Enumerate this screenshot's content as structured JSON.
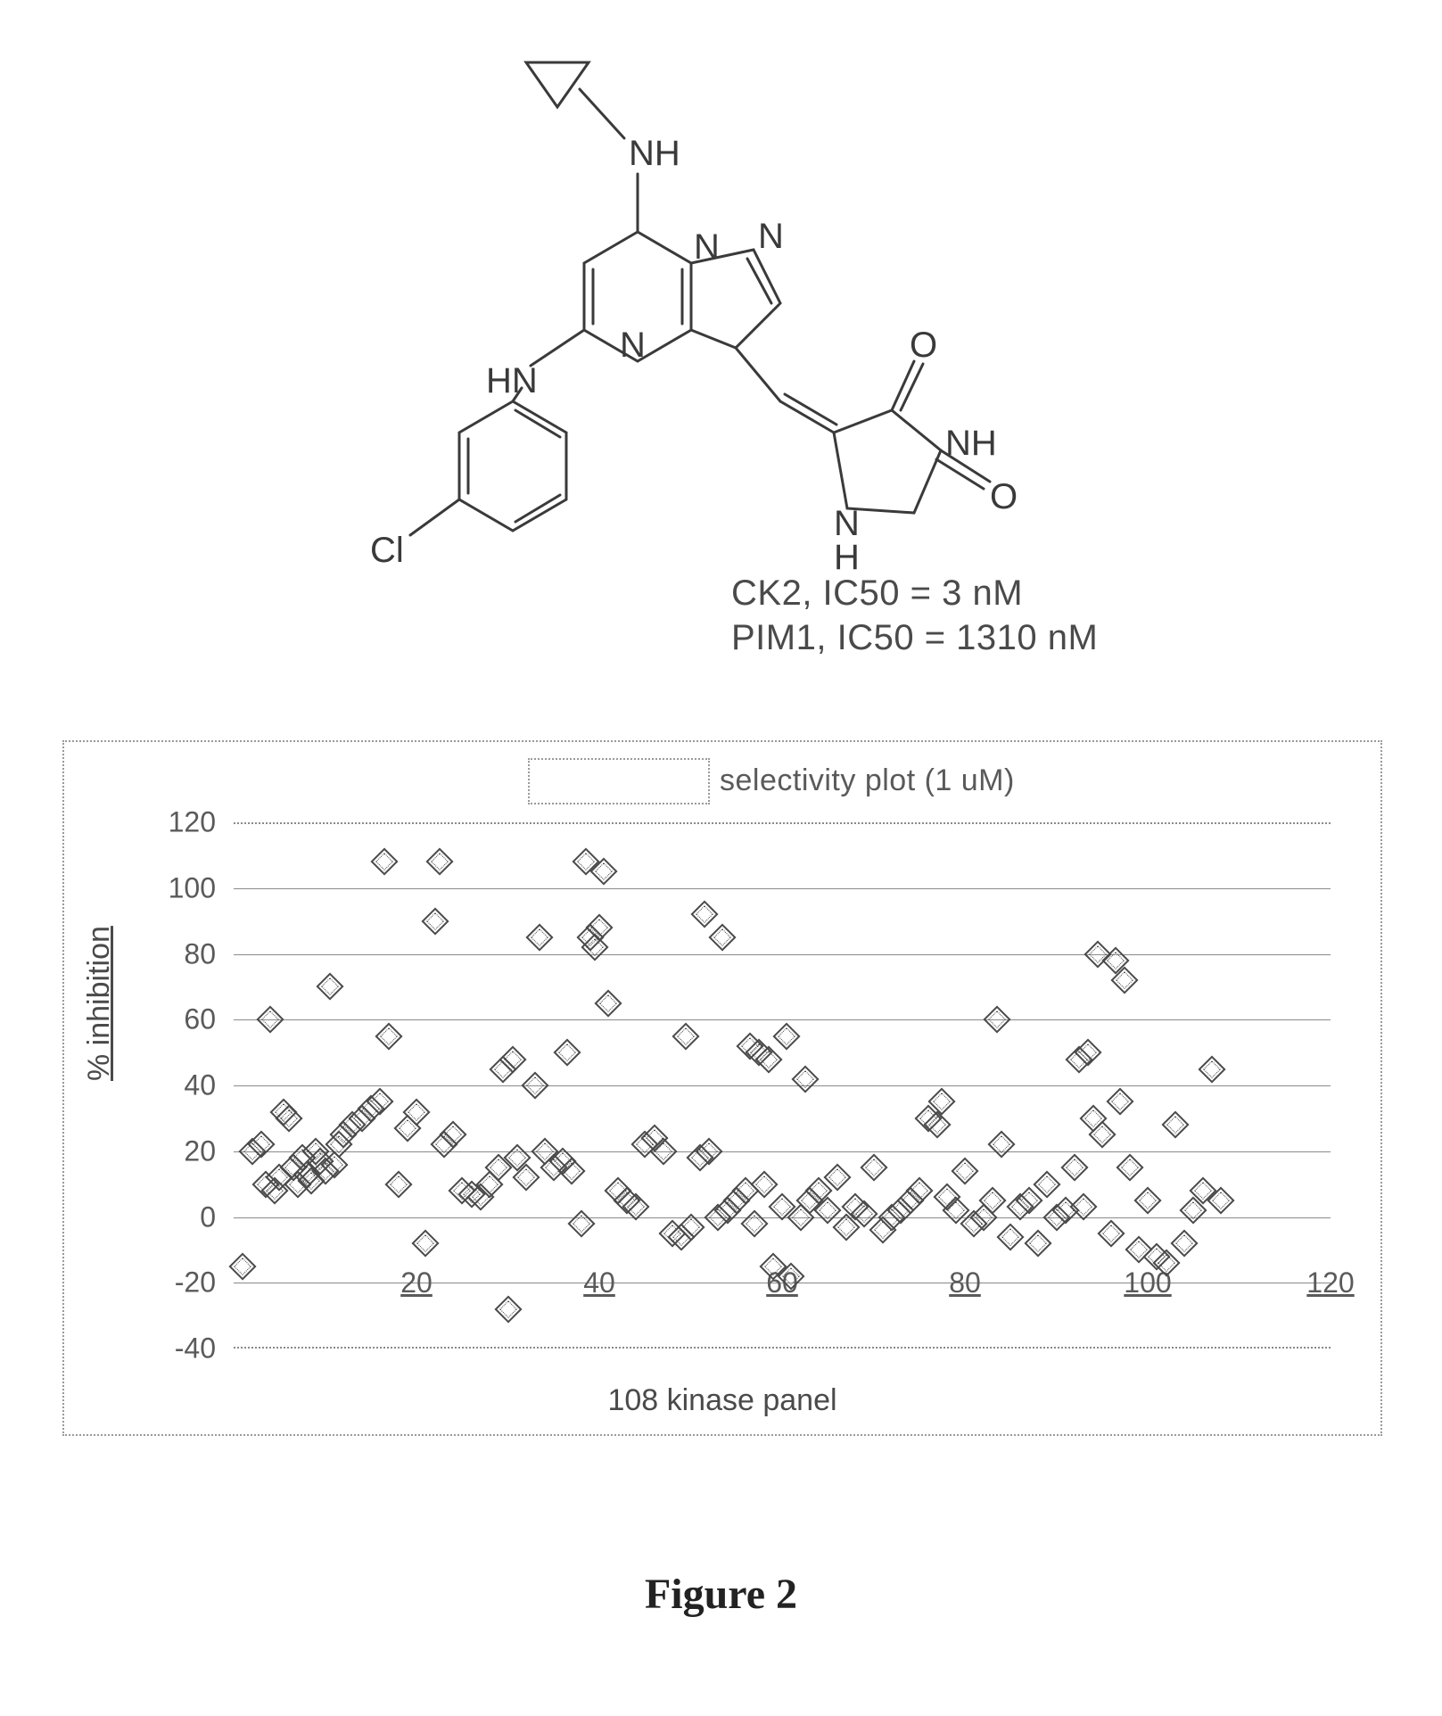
{
  "molecule": {
    "atom_labels": {
      "nh_top": "NH",
      "hn_left": "HN",
      "n_ring_center": "N",
      "n_ring_top": "N",
      "n_ring_right": "N",
      "cl": "Cl",
      "o_top": "O",
      "o_bottom": "O",
      "nh_hyd_right": "NH",
      "nh_hyd_bottom_label_n": "N",
      "nh_hyd_bottom_label_h": "H"
    },
    "line_color": "#3a3a3a",
    "line_width": 3,
    "font_size": 40
  },
  "ic50": {
    "line1": "CK2, IC50 = 3 nM",
    "line2": "PIM1, IC50 = 1310 nM"
  },
  "chart": {
    "type": "scatter",
    "title_box_empty": true,
    "legend_text": "selectivity plot (1 uM)",
    "xlabel": "108 kinase panel",
    "ylabel": "% inhibition",
    "xlim": [
      0,
      120
    ],
    "ylim": [
      -40,
      120
    ],
    "xticks": [
      20,
      40,
      60,
      80,
      100,
      120
    ],
    "yticks": [
      -40,
      -20,
      0,
      20,
      40,
      60,
      80,
      100,
      120
    ],
    "grid_y_values": [
      -20,
      0,
      20,
      40,
      60,
      80,
      100
    ],
    "grid_color": "#8a8a8a",
    "border_style": "dotted",
    "background": "#ffffff",
    "label_fontsize": 34,
    "tick_fontsize": 32,
    "marker_style": "diamond",
    "marker_size": 18,
    "marker_color": "#4a4a4a",
    "points": [
      [
        1,
        -15
      ],
      [
        2,
        20
      ],
      [
        3,
        22
      ],
      [
        3.5,
        10
      ],
      [
        4,
        60
      ],
      [
        4.5,
        8
      ],
      [
        5,
        12
      ],
      [
        5.5,
        32
      ],
      [
        6,
        30
      ],
      [
        6.5,
        15
      ],
      [
        7,
        10
      ],
      [
        7.5,
        18
      ],
      [
        8,
        13
      ],
      [
        8.5,
        11
      ],
      [
        9,
        20
      ],
      [
        9.5,
        17
      ],
      [
        10,
        14
      ],
      [
        10.5,
        70
      ],
      [
        11,
        16
      ],
      [
        11.5,
        22
      ],
      [
        12,
        25
      ],
      [
        13,
        28
      ],
      [
        14,
        30
      ],
      [
        15,
        33
      ],
      [
        16,
        35
      ],
      [
        16.5,
        108
      ],
      [
        17,
        55
      ],
      [
        18,
        10
      ],
      [
        19,
        27
      ],
      [
        20,
        32
      ],
      [
        21,
        -8
      ],
      [
        22,
        90
      ],
      [
        22.5,
        108
      ],
      [
        23,
        22
      ],
      [
        24,
        25
      ],
      [
        25,
        8
      ],
      [
        26,
        7
      ],
      [
        27,
        6
      ],
      [
        28,
        10
      ],
      [
        29,
        15
      ],
      [
        29.5,
        45
      ],
      [
        30,
        -28
      ],
      [
        30.5,
        48
      ],
      [
        31,
        18
      ],
      [
        32,
        12
      ],
      [
        33,
        40
      ],
      [
        33.5,
        85
      ],
      [
        34,
        20
      ],
      [
        35,
        15
      ],
      [
        36,
        17
      ],
      [
        36.5,
        50
      ],
      [
        37,
        14
      ],
      [
        38,
        -2
      ],
      [
        38.5,
        108
      ],
      [
        39,
        85
      ],
      [
        39.5,
        82
      ],
      [
        40,
        88
      ],
      [
        40.5,
        105
      ],
      [
        41,
        65
      ],
      [
        42,
        8
      ],
      [
        43,
        5
      ],
      [
        44,
        3
      ],
      [
        45,
        22
      ],
      [
        46,
        24
      ],
      [
        47,
        20
      ],
      [
        48,
        -5
      ],
      [
        49,
        -6
      ],
      [
        49.5,
        55
      ],
      [
        50,
        -3
      ],
      [
        51,
        18
      ],
      [
        51.5,
        92
      ],
      [
        52,
        20
      ],
      [
        53,
        0
      ],
      [
        53.5,
        85
      ],
      [
        54,
        2
      ],
      [
        55,
        5
      ],
      [
        56,
        8
      ],
      [
        56.5,
        52
      ],
      [
        57,
        -2
      ],
      [
        57.5,
        50
      ],
      [
        58,
        10
      ],
      [
        58.5,
        48
      ],
      [
        59,
        -15
      ],
      [
        60,
        3
      ],
      [
        60.5,
        55
      ],
      [
        61,
        -18
      ],
      [
        62,
        0
      ],
      [
        62.5,
        42
      ],
      [
        63,
        5
      ],
      [
        64,
        8
      ],
      [
        65,
        2
      ],
      [
        66,
        12
      ],
      [
        67,
        -3
      ],
      [
        68,
        3
      ],
      [
        69,
        1
      ],
      [
        70,
        15
      ],
      [
        71,
        -4
      ],
      [
        72,
        0
      ],
      [
        73,
        2
      ],
      [
        74,
        5
      ],
      [
        75,
        8
      ],
      [
        76,
        30
      ],
      [
        77,
        28
      ],
      [
        77.5,
        35
      ],
      [
        78,
        6
      ],
      [
        79,
        2
      ],
      [
        80,
        14
      ],
      [
        81,
        -2
      ],
      [
        82,
        0
      ],
      [
        83,
        5
      ],
      [
        83.5,
        60
      ],
      [
        84,
        22
      ],
      [
        85,
        -6
      ],
      [
        86,
        3
      ],
      [
        87,
        5
      ],
      [
        88,
        -8
      ],
      [
        89,
        10
      ],
      [
        90,
        0
      ],
      [
        91,
        2
      ],
      [
        92,
        15
      ],
      [
        92.5,
        48
      ],
      [
        93,
        3
      ],
      [
        93.5,
        50
      ],
      [
        94,
        30
      ],
      [
        94.5,
        80
      ],
      [
        95,
        25
      ],
      [
        96,
        -5
      ],
      [
        96.5,
        78
      ],
      [
        97,
        35
      ],
      [
        97.5,
        72
      ],
      [
        98,
        15
      ],
      [
        99,
        -10
      ],
      [
        100,
        5
      ],
      [
        101,
        -12
      ],
      [
        102,
        -14
      ],
      [
        103,
        28
      ],
      [
        104,
        -8
      ],
      [
        105,
        2
      ],
      [
        106,
        8
      ],
      [
        107,
        45
      ],
      [
        108,
        5
      ]
    ]
  },
  "caption": "Figure 2"
}
